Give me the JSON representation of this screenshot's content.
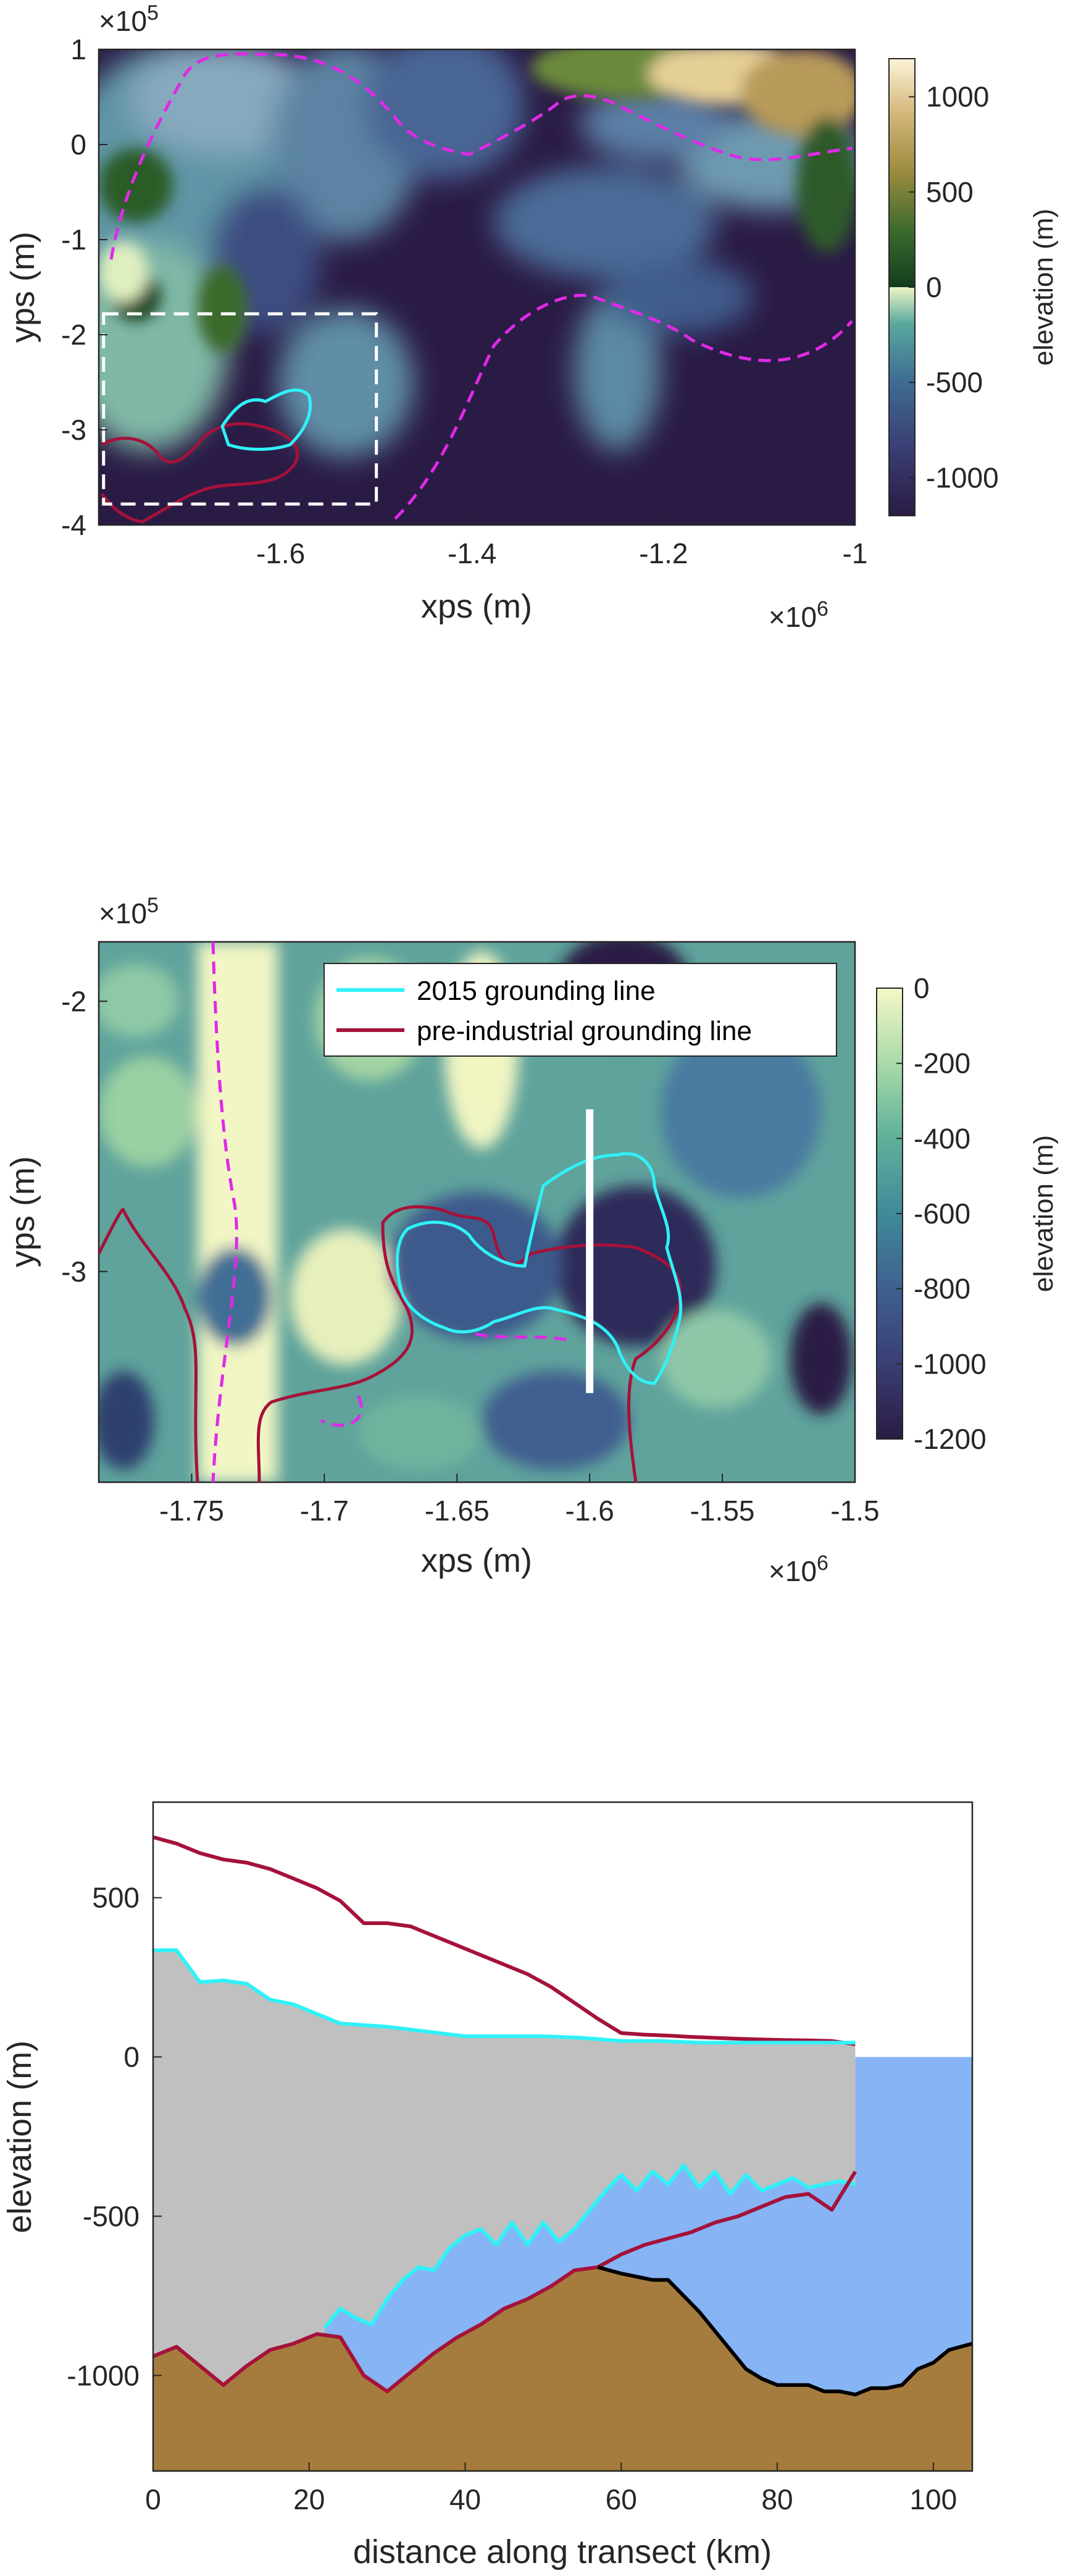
{
  "chart_data": [
    {
      "type": "heatmap",
      "xlabel": "xps (m)",
      "ylabel": "yps (m)",
      "x_exponent": "×10",
      "x_exponent_power": "6",
      "y_exponent": "×10",
      "y_exponent_power": "5",
      "xlim": [
        -1.79,
        -1.0
      ],
      "ylim": [
        -4.0,
        1.0
      ],
      "xticks": [
        "-1.6",
        "-1.4",
        "-1.2",
        "-1"
      ],
      "yticks": [
        "1",
        "0",
        "-1",
        "-2",
        "-3",
        "-4"
      ],
      "colorbar": {
        "label": "elevation (m)",
        "range": [
          -1200,
          1200
        ],
        "ticks": [
          "1000",
          "500",
          "0",
          "-500",
          "-1000"
        ],
        "tick_values": [
          1000,
          500,
          0,
          -500,
          -1000
        ]
      },
      "inset_box": {
        "x": [
          -1.785,
          -1.5
        ],
        "y": [
          -3.78,
          -1.78
        ]
      }
    },
    {
      "type": "heatmap",
      "xlabel": "xps (m)",
      "ylabel": "yps (m)",
      "x_exponent": "×10",
      "x_exponent_power": "6",
      "y_exponent": "×10",
      "y_exponent_power": "5",
      "xlim": [
        -1.785,
        -1.5
      ],
      "ylim": [
        -3.78,
        -1.78
      ],
      "xticks": [
        "-1.75",
        "-1.7",
        "-1.65",
        "-1.6",
        "-1.55",
        "-1.5"
      ],
      "yticks": [
        "-2",
        "-3"
      ],
      "colorbar": {
        "label": "elevation (m)",
        "range": [
          -1200,
          0
        ],
        "ticks": [
          "0",
          "-200",
          "-400",
          "-600",
          "-800",
          "-1000",
          "-1200"
        ],
        "tick_values": [
          0,
          -200,
          -400,
          -600,
          -800,
          -1000,
          -1200
        ]
      },
      "legend": {
        "placement": "top-right",
        "entries": [
          {
            "label": "2015 grounding line",
            "color": "#2ff2f8"
          },
          {
            "label": "pre-industrial grounding line",
            "color": "#a5123a"
          }
        ]
      },
      "transect": {
        "x": -1.6,
        "y": [
          -3.45,
          -2.4
        ]
      }
    },
    {
      "type": "area",
      "xlabel": "distance along transect (km)",
      "ylabel": "elevation (m)",
      "xlim": [
        0,
        105
      ],
      "ylim": [
        -1300,
        800
      ],
      "xticks": [
        "0",
        "20",
        "40",
        "60",
        "80",
        "100"
      ],
      "yticks": [
        "500",
        "0",
        "-500",
        "-1000"
      ],
      "series": [
        {
          "color": "#a5123a",
          "kind": "pre-industrial surface",
          "x": [
            0,
            3,
            6,
            9,
            12,
            15,
            18,
            21,
            24,
            27,
            30,
            33,
            36,
            39,
            42,
            45,
            48,
            51,
            54,
            57,
            60,
            63,
            66,
            69,
            72,
            75,
            78,
            81,
            84,
            87,
            90
          ],
          "values": [
            690,
            670,
            640,
            620,
            610,
            590,
            560,
            530,
            490,
            420,
            420,
            410,
            380,
            350,
            320,
            290,
            260,
            220,
            170,
            120,
            75,
            70,
            67,
            63,
            60,
            57,
            55,
            53,
            52,
            50,
            40
          ]
        },
        {
          "color": "#2ff2f8",
          "kind": "2015 surface",
          "x": [
            0,
            3,
            6,
            9,
            12,
            15,
            18,
            21,
            24,
            27,
            30,
            35,
            40,
            45,
            50,
            55,
            60,
            65,
            70,
            75,
            80,
            85,
            90
          ],
          "values": [
            335,
            335,
            235,
            240,
            230,
            180,
            165,
            135,
            105,
            100,
            95,
            80,
            65,
            65,
            65,
            60,
            50,
            50,
            45,
            45,
            45,
            45,
            45
          ]
        },
        {
          "color": "#2ff2f8",
          "kind": "2015 ice base",
          "x": [
            22,
            24,
            26,
            28,
            30,
            32,
            34,
            36,
            38,
            40,
            42,
            44,
            46,
            48,
            50,
            52,
            54,
            56,
            58,
            60,
            62,
            64,
            66,
            68,
            70,
            72,
            74,
            76,
            78,
            80,
            82,
            84,
            86,
            88,
            90
          ],
          "values": [
            -850,
            -790,
            -820,
            -840,
            -760,
            -700,
            -660,
            -670,
            -600,
            -560,
            -540,
            -590,
            -520,
            -590,
            -520,
            -580,
            -540,
            -480,
            -420,
            -370,
            -420,
            -360,
            -400,
            -340,
            -410,
            -360,
            -430,
            -370,
            -420,
            -400,
            -380,
            -410,
            -400,
            -390,
            -400
          ]
        },
        {
          "color": "#a5123a",
          "kind": "pre-industrial ice base",
          "x": [
            0,
            3,
            6,
            9,
            12,
            15,
            18,
            21,
            24,
            27,
            30,
            33,
            36,
            39,
            42,
            45,
            48,
            51,
            54,
            57,
            60,
            63,
            66,
            69,
            72,
            75,
            78,
            81,
            84,
            87,
            90
          ],
          "values": [
            -940,
            -910,
            -970,
            -1030,
            -970,
            -920,
            -900,
            -870,
            -880,
            -1000,
            -1050,
            -990,
            -930,
            -880,
            -840,
            -790,
            -760,
            -720,
            -670,
            -660,
            -620,
            -590,
            -570,
            -550,
            -520,
            -500,
            -470,
            -440,
            -430,
            -480,
            -360
          ]
        },
        {
          "color": "#000000",
          "kind": "bed",
          "x": [
            57,
            60,
            62,
            64,
            66,
            68,
            70,
            72,
            74,
            76,
            78,
            80,
            82,
            84,
            86,
            88,
            90,
            92,
            94,
            96,
            98,
            100,
            102,
            105
          ],
          "values": [
            -660,
            -680,
            -690,
            -700,
            -700,
            -750,
            -800,
            -860,
            -920,
            -980,
            -1010,
            -1030,
            -1030,
            -1030,
            -1050,
            -1050,
            -1060,
            -1040,
            -1040,
            -1030,
            -980,
            -960,
            -920,
            -900
          ]
        }
      ],
      "fills": {
        "ice": "#c0c0c0",
        "ocean": "#86b4f5",
        "bedrock": "#a67c3e"
      }
    }
  ]
}
